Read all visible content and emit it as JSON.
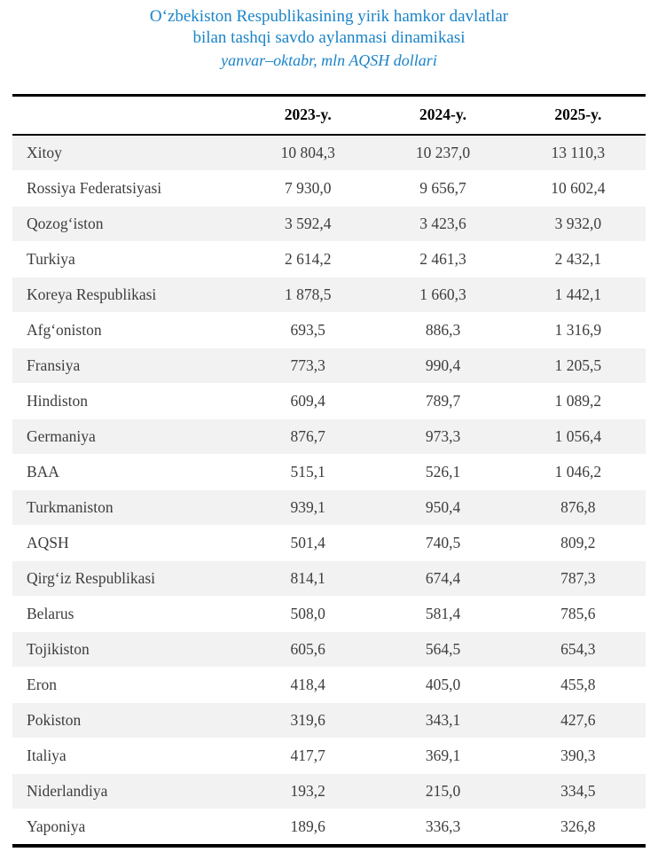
{
  "title": {
    "line1": "O‘zbekiston Respublikasining yirik hamkor davlatlar",
    "line2": "bilan tashqi savdo aylanmasi dinamikasi",
    "subtitle": "yanvar–oktabr, mln AQSH dollari"
  },
  "colors": {
    "title_blue": "#1b84c7",
    "stripe_gray": "#f2f2f2",
    "border_black": "#000000",
    "body_text": "#3d3d3d"
  },
  "chart_data": {
    "type": "table",
    "title": "O‘zbekiston Respublikasining yirik hamkor davlatlar bilan tashqi savdo aylanmasi dinamikasi",
    "subtitle": "yanvar–oktabr, mln AQSH dollari",
    "columns": [
      "",
      "2023-y.",
      "2024-y.",
      "2025-y."
    ],
    "rows": [
      [
        "Xitoy",
        "10 804,3",
        "10 237,0",
        "13 110,3"
      ],
      [
        "Rossiya Federatsiyasi",
        "7 930,0",
        "9 656,7",
        "10 602,4"
      ],
      [
        "Qozog‘iston",
        "3 592,4",
        "3 423,6",
        "3 932,0"
      ],
      [
        "Turkiya",
        "2 614,2",
        "2 461,3",
        "2 432,1"
      ],
      [
        "Koreya Respublikasi",
        "1 878,5",
        "1 660,3",
        "1 442,1"
      ],
      [
        "Afg‘oniston",
        "693,5",
        "886,3",
        "1 316,9"
      ],
      [
        "Fransiya",
        "773,3",
        "990,4",
        "1 205,5"
      ],
      [
        "Hindiston",
        "609,4",
        "789,7",
        "1 089,2"
      ],
      [
        "Germaniya",
        "876,7",
        "973,3",
        "1 056,4"
      ],
      [
        "BAA",
        "515,1",
        "526,1",
        "1 046,2"
      ],
      [
        "Turkmaniston",
        "939,1",
        "950,4",
        "876,8"
      ],
      [
        "AQSH",
        "501,4",
        "740,5",
        "809,2"
      ],
      [
        "Qirg‘iz Respublikasi",
        "814,1",
        "674,4",
        "787,3"
      ],
      [
        "Belarus",
        "508,0",
        "581,4",
        "785,6"
      ],
      [
        "Tojikiston",
        "605,6",
        "564,5",
        "654,3"
      ],
      [
        "Eron",
        "418,4",
        "405,0",
        "455,8"
      ],
      [
        "Pokiston",
        "319,6",
        "343,1",
        "427,6"
      ],
      [
        "Italiya",
        "417,7",
        "369,1",
        "390,3"
      ],
      [
        "Niderlandiya",
        "193,2",
        "215,0",
        "334,5"
      ],
      [
        "Yaponiya",
        "189,6",
        "336,3",
        "326,8"
      ]
    ]
  }
}
